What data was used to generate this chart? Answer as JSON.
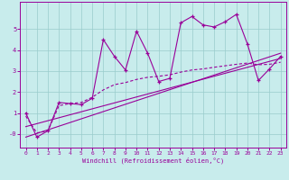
{
  "xlabel": "Windchill (Refroidissement éolien,°C)",
  "bg_color": "#c8ecec",
  "line_color": "#990099",
  "xlim": [
    -0.5,
    23.5
  ],
  "ylim": [
    -0.65,
    6.3
  ],
  "xticks": [
    0,
    1,
    2,
    3,
    4,
    5,
    6,
    7,
    8,
    9,
    10,
    11,
    12,
    13,
    14,
    15,
    16,
    17,
    18,
    19,
    20,
    21,
    22,
    23
  ],
  "yticks": [
    0,
    1,
    2,
    3,
    4,
    5
  ],
  "ytick_labels": [
    "-0",
    "1",
    "2",
    "3",
    "4",
    "5"
  ],
  "data_x": [
    0,
    1,
    2,
    3,
    4,
    5,
    6,
    7,
    8,
    9,
    10,
    11,
    12,
    13,
    14,
    15,
    16,
    17,
    18,
    19,
    20,
    21,
    22,
    23
  ],
  "data_y": [
    1.0,
    -0.15,
    0.15,
    1.5,
    1.45,
    1.4,
    1.7,
    4.5,
    3.7,
    3.05,
    4.9,
    3.85,
    2.5,
    2.65,
    5.3,
    5.6,
    5.2,
    5.1,
    5.35,
    5.7,
    4.3,
    2.55,
    3.1,
    3.7
  ],
  "trend1_x": [
    0,
    23
  ],
  "trend1_y": [
    0.35,
    3.6
  ],
  "trend2_x": [
    0,
    23
  ],
  "trend2_y": [
    -0.15,
    3.85
  ],
  "smooth_x": [
    0,
    1,
    2,
    3,
    4,
    5,
    6,
    7,
    8,
    9,
    10,
    11,
    12,
    13,
    14,
    15,
    16,
    17,
    18,
    19,
    20,
    21,
    22,
    23
  ],
  "smooth_y": [
    0.85,
    0.05,
    0.15,
    1.35,
    1.45,
    1.5,
    1.75,
    2.1,
    2.35,
    2.45,
    2.6,
    2.7,
    2.75,
    2.82,
    2.95,
    3.05,
    3.1,
    3.18,
    3.25,
    3.32,
    3.38,
    3.3,
    3.32,
    3.42
  ]
}
